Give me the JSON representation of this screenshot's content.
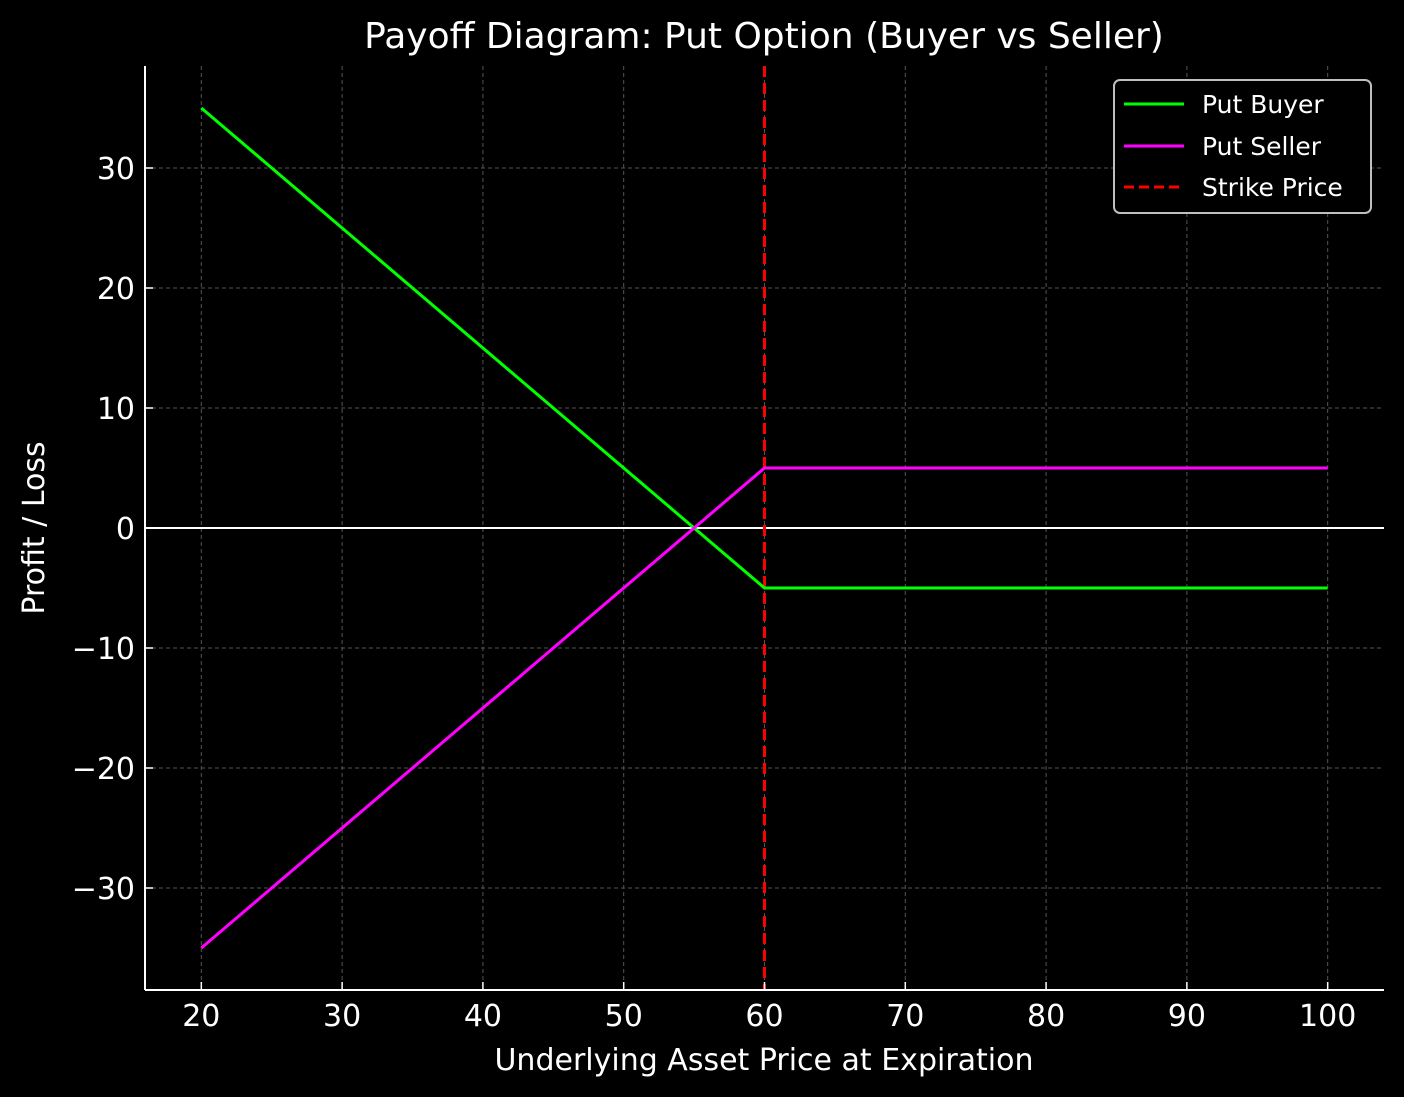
{
  "chart_data": {
    "type": "line",
    "title": "Payoff Diagram: Put Option (Buyer vs Seller)",
    "xlabel": "Underlying Asset Price at Expiration",
    "ylabel": "Profit / Loss",
    "xlim": [
      16,
      104
    ],
    "ylim": [
      -38.5,
      38.5
    ],
    "xticks": [
      20,
      30,
      40,
      50,
      60,
      70,
      80,
      90,
      100
    ],
    "yticks": [
      -30,
      -20,
      -10,
      0,
      10,
      20,
      30
    ],
    "ytick_labels": [
      "−30",
      "−20",
      "−10",
      "0",
      "10",
      "20",
      "30"
    ],
    "grid": true,
    "legend_position": "top-right",
    "series": [
      {
        "name": "Put Buyer",
        "color": "#00ff00",
        "x": [
          20,
          60,
          100
        ],
        "y": [
          35,
          -5,
          -5
        ]
      },
      {
        "name": "Put Seller",
        "color": "#ff00ff",
        "x": [
          20,
          60,
          100
        ],
        "y": [
          -35,
          5,
          5
        ]
      }
    ],
    "reference_lines": [
      {
        "name": "Strike Price",
        "orientation": "vertical",
        "x": 60,
        "color": "#ff0000",
        "style": "dashed"
      },
      {
        "orientation": "horizontal",
        "y": 0,
        "color": "#ffffff",
        "style": "solid"
      }
    ]
  }
}
